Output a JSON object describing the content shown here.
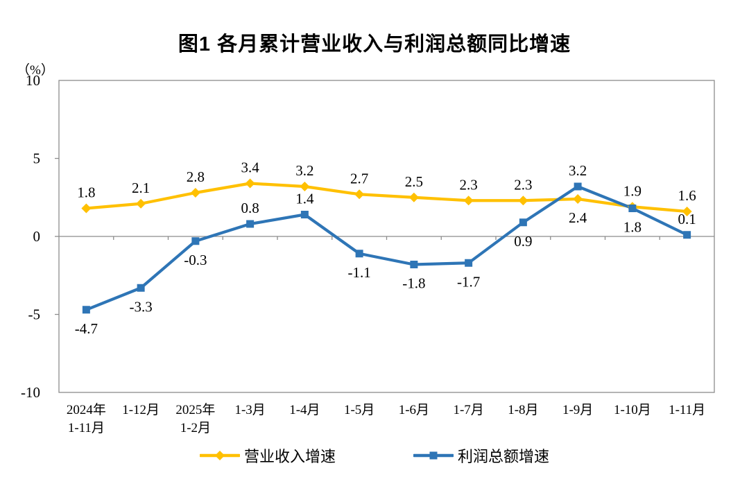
{
  "chart_data": {
    "type": "line",
    "title": "图1 各月累计营业收入与利润总额同比增速",
    "xlabel": "",
    "ylabel": "",
    "y_axis": {
      "unit": "（%）",
      "min": -10,
      "max": 10,
      "ticks": [
        10,
        5,
        0,
        -5,
        -10
      ]
    },
    "grid": false,
    "legend_position": "bottom",
    "categories": [
      [
        "2024年",
        "1-11月"
      ],
      [
        "1-12月"
      ],
      [
        "2025年",
        "1-2月"
      ],
      [
        "1-3月"
      ],
      [
        "1-4月"
      ],
      [
        "1-5月"
      ],
      [
        "1-6月"
      ],
      [
        "1-7月"
      ],
      [
        "1-8月"
      ],
      [
        "1-9月"
      ],
      [
        "1-10月"
      ],
      [
        "1-11月"
      ]
    ],
    "series": [
      {
        "name": "营业收入增速",
        "color": "#FFC000",
        "marker": "diamond",
        "values": [
          1.8,
          2.1,
          2.8,
          3.4,
          3.2,
          2.7,
          2.5,
          2.3,
          2.3,
          2.4,
          1.9,
          1.6
        ],
        "labels": [
          "1.8",
          "2.1",
          "2.8",
          "3.4",
          "3.2",
          "2.7",
          "2.5",
          "2.3",
          "2.3",
          "2.4",
          "1.9",
          "1.6"
        ],
        "label_side": [
          "above",
          "above",
          "above",
          "above",
          "above",
          "above",
          "above",
          "above",
          "above",
          "below",
          "above",
          "above"
        ]
      },
      {
        "name": "利润总额增速",
        "color": "#2E75B6",
        "marker": "square",
        "values": [
          -4.7,
          -3.3,
          -0.3,
          0.8,
          1.4,
          -1.1,
          -1.8,
          -1.7,
          0.9,
          3.2,
          1.8,
          0.1
        ],
        "labels": [
          "-4.7",
          "-3.3",
          "-0.3",
          "0.8",
          "1.4",
          "-1.1",
          "-1.8",
          "-1.7",
          "0.9",
          "3.2",
          "1.8",
          "0.1"
        ],
        "label_side": [
          "below",
          "below",
          "below",
          "above",
          "above",
          "below",
          "below",
          "below",
          "below",
          "above",
          "below",
          "above"
        ]
      }
    ],
    "axis_color": "#8C8C8C"
  }
}
